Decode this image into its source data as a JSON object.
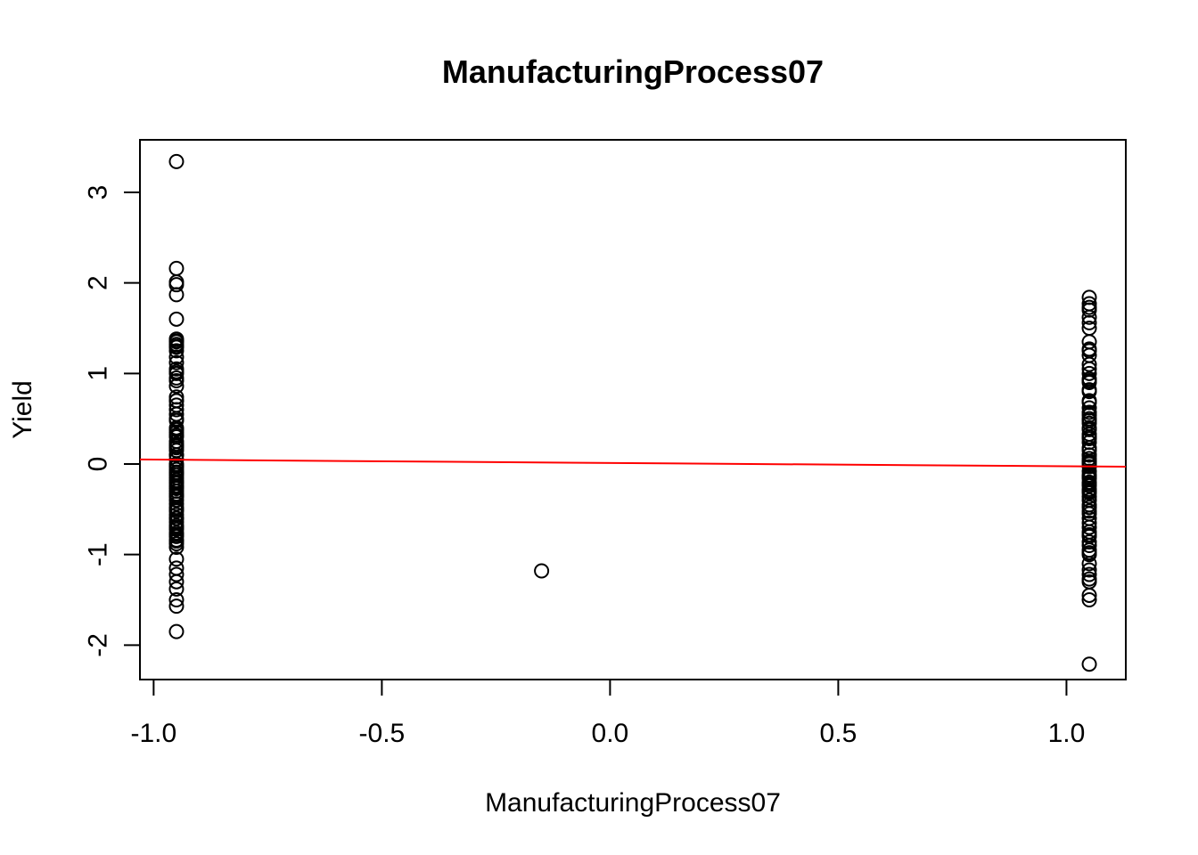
{
  "chart_data": {
    "type": "scatter",
    "title": "ManufacturingProcess07",
    "xlabel": "ManufacturingProcess07",
    "ylabel": "Yield",
    "xlim": [
      -1.03,
      1.13
    ],
    "ylim": [
      -2.38,
      3.58
    ],
    "x_ticks": [
      -1.0,
      -0.5,
      0.0,
      0.5,
      1.0
    ],
    "x_tick_labels": [
      "-1.0",
      "-0.5",
      "0.0",
      "0.5",
      "1.0"
    ],
    "y_ticks": [
      -2,
      -1,
      0,
      1,
      2,
      3
    ],
    "y_tick_labels": [
      "-2",
      "-1",
      "0",
      "1",
      "2",
      "3"
    ],
    "grid": false,
    "legend": "none",
    "point_color": "#000000",
    "fit_line_color": "#ff0000",
    "fit_line": {
      "x": [
        -1.03,
        1.13
      ],
      "y": [
        0.05,
        -0.03
      ]
    },
    "series": [
      {
        "x": [
          -0.95,
          -0.95,
          -0.95,
          -0.95,
          -0.95,
          -0.95,
          -0.95,
          -0.95,
          -0.95,
          -0.95,
          -0.95,
          -0.95,
          -0.95,
          -0.95,
          -0.95,
          -0.95,
          -0.95,
          -0.95,
          -0.95,
          -0.95,
          -0.95,
          -0.95,
          -0.95,
          -0.95,
          -0.95,
          -0.95,
          -0.95,
          -0.95,
          -0.95,
          -0.95,
          -0.95,
          -0.95,
          -0.95,
          -0.95,
          -0.95,
          -0.95,
          -0.95,
          -0.95,
          -0.95,
          -0.95,
          -0.95,
          -0.95,
          -0.95,
          -0.95,
          -0.95,
          -0.95,
          -0.95,
          -0.95,
          -0.95,
          -0.95,
          -0.95,
          -0.95,
          -0.95,
          -0.95,
          -0.95,
          -0.95,
          -0.95,
          -0.95,
          -0.95,
          -0.95,
          -0.95,
          -0.95,
          -0.95,
          -0.95,
          -0.95,
          -0.95,
          -0.95,
          -0.95,
          -0.95,
          -0.95,
          -0.95,
          -0.95,
          -0.95,
          -0.95,
          -0.95,
          -0.95,
          -0.95,
          -0.95,
          -0.95,
          -0.95,
          -0.95,
          -0.95,
          -0.95,
          -0.95,
          -0.95,
          -0.95,
          -0.95,
          -0.15,
          1.05,
          1.05,
          1.05,
          1.05,
          1.05,
          1.05,
          1.05,
          1.05,
          1.05,
          1.05,
          1.05,
          1.05,
          1.05,
          1.05,
          1.05,
          1.05,
          1.05,
          1.05,
          1.05,
          1.05,
          1.05,
          1.05,
          1.05,
          1.05,
          1.05,
          1.05,
          1.05,
          1.05,
          1.05,
          1.05,
          1.05,
          1.05,
          1.05,
          1.05,
          1.05,
          1.05,
          1.05,
          1.05,
          1.05,
          1.05,
          1.05,
          1.05,
          1.05,
          1.05,
          1.05,
          1.05,
          1.05,
          1.05,
          1.05,
          1.05,
          1.05,
          1.05,
          1.05,
          1.05,
          1.05,
          1.05,
          1.05,
          1.05,
          1.05,
          1.05,
          1.05,
          1.05,
          1.05,
          1.05,
          1.05,
          1.05,
          1.05,
          1.05,
          1.05,
          1.05,
          1.05,
          1.05,
          1.05,
          1.05,
          1.05,
          1.05,
          1.05
        ],
        "y": [
          3.34,
          2.16,
          2.01,
          1.98,
          1.87,
          1.6,
          1.38,
          1.35,
          1.32,
          1.29,
          1.25,
          1.18,
          1.12,
          1.05,
          1.02,
          0.92,
          0.86,
          0.74,
          0.7,
          0.65,
          0.55,
          0.5,
          0.38,
          0.35,
          0.3,
          0.25,
          0.2,
          0.15,
          0.1,
          0.05,
          0.0,
          -0.03,
          -0.06,
          -0.09,
          -0.12,
          -0.15,
          -0.18,
          -0.21,
          -0.24,
          -0.27,
          -0.3,
          -0.33,
          -0.36,
          -0.4,
          -0.44,
          -0.48,
          -0.52,
          -0.56,
          -0.6,
          -0.64,
          -0.68,
          -0.72,
          -0.76,
          -0.8,
          -0.84,
          -0.88,
          -0.92,
          -1.05,
          -1.15,
          -1.22,
          -1.3,
          -1.38,
          -1.5,
          -1.57,
          -1.85,
          0.4,
          -0.6,
          -0.1,
          0.6,
          1.0,
          1.3,
          -0.85,
          -0.2,
          0.32,
          0.7,
          -0.5,
          0.1,
          -0.7,
          0.22,
          -0.35,
          -0.02,
          1.36,
          0.95,
          -0.25,
          0.48,
          -0.78,
          0.18,
          -1.18,
          1.84,
          1.77,
          1.73,
          1.7,
          1.56,
          1.5,
          1.35,
          1.25,
          1.2,
          1.05,
          1.0,
          0.94,
          0.9,
          0.82,
          0.7,
          0.62,
          0.57,
          0.5,
          0.45,
          0.38,
          0.33,
          0.3,
          0.24,
          0.18,
          0.1,
          0.06,
          0.03,
          0.0,
          -0.03,
          -0.08,
          -0.12,
          -0.16,
          -0.2,
          -0.24,
          -0.28,
          -0.32,
          -0.36,
          -0.4,
          -0.45,
          -0.52,
          -0.55,
          -0.7,
          -0.75,
          -0.8,
          -0.86,
          -0.9,
          -0.95,
          -1.0,
          -1.1,
          -1.17,
          -1.22,
          -1.3,
          -1.45,
          -1.5,
          -2.21,
          0.8,
          0.4,
          -0.65,
          1.62,
          0.15,
          -0.14,
          0.68,
          -0.48,
          0.28,
          -0.98,
          1.1,
          0.54,
          -0.3,
          0.02,
          -0.78,
          1.27,
          0.92,
          -0.22,
          0.48,
          -1.27,
          0.1,
          -0.6
        ]
      }
    ]
  }
}
